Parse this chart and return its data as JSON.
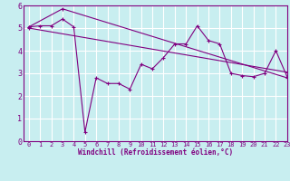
{
  "line1_x": [
    0,
    1,
    2,
    3,
    4,
    5,
    6,
    7,
    8,
    9,
    10,
    11,
    12,
    13,
    14,
    15,
    16,
    17,
    18,
    19,
    20,
    21,
    22,
    23
  ],
  "line1_y": [
    5.05,
    5.1,
    5.1,
    5.4,
    5.05,
    0.4,
    2.8,
    2.55,
    2.55,
    2.3,
    3.4,
    3.2,
    3.7,
    4.3,
    4.3,
    5.1,
    4.45,
    4.3,
    3.0,
    2.9,
    2.85,
    3.0,
    4.0,
    2.85
  ],
  "line2_x": [
    0,
    3,
    23
  ],
  "line2_y": [
    5.05,
    5.85,
    2.8
  ],
  "line3_x": [
    0,
    23
  ],
  "line3_y": [
    5.0,
    3.05
  ],
  "color": "#800080",
  "bg_color": "#c8eef0",
  "xlabel": "Windchill (Refroidissement éolien,°C)",
  "ylim": [
    0,
    6
  ],
  "xlim": [
    -0.5,
    23
  ],
  "yticks": [
    0,
    1,
    2,
    3,
    4,
    5,
    6
  ],
  "xticks": [
    0,
    1,
    2,
    3,
    4,
    5,
    6,
    7,
    8,
    9,
    10,
    11,
    12,
    13,
    14,
    15,
    16,
    17,
    18,
    19,
    20,
    21,
    22,
    23
  ],
  "tick_fontsize": 5,
  "xlabel_fontsize": 5.5
}
